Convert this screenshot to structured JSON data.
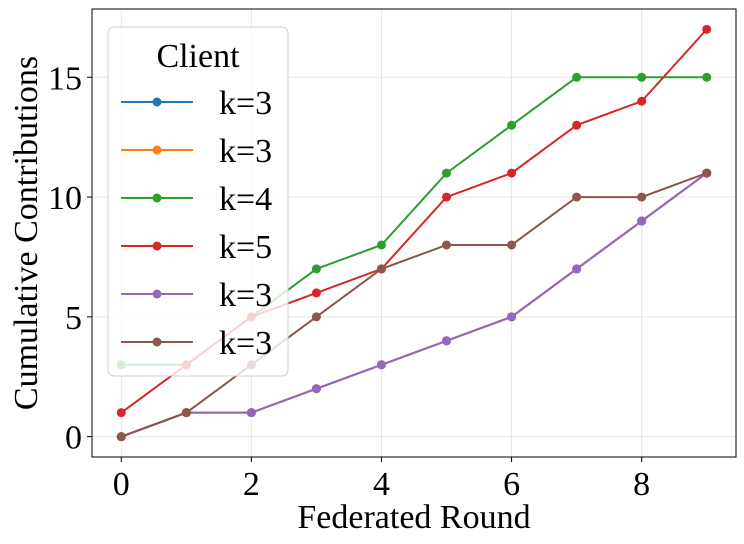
{
  "chart_data": {
    "type": "line",
    "xlabel": "Federated Round",
    "ylabel": "Cumulative Contributions",
    "xlim": [
      -0.45,
      9.45
    ],
    "ylim": [
      -0.85,
      17.85
    ],
    "xticks": [
      0,
      2,
      4,
      6,
      8
    ],
    "yticks": [
      0,
      5,
      10,
      15
    ],
    "grid": true,
    "legend": {
      "title": "Client",
      "placement": "upper-left"
    },
    "x": [
      0,
      1,
      2,
      3,
      4,
      5,
      6,
      7,
      8,
      9
    ],
    "series": [
      {
        "name": "k=3",
        "color": "#1f77b4",
        "values": [
          0,
          1,
          1,
          2,
          3,
          4,
          5,
          7,
          9,
          11
        ]
      },
      {
        "name": "k=3",
        "color": "#ff7f0e",
        "values": [
          0,
          1,
          1,
          2,
          3,
          4,
          5,
          7,
          9,
          11
        ]
      },
      {
        "name": "k=4",
        "color": "#2ca02c",
        "values": [
          3,
          3,
          5,
          7,
          8,
          11,
          13,
          15,
          15,
          15
        ]
      },
      {
        "name": "k=5",
        "color": "#d62728",
        "values": [
          1,
          3,
          5,
          6,
          7,
          10,
          11,
          13,
          14,
          17
        ]
      },
      {
        "name": "k=3",
        "color": "#9467bd",
        "values": [
          0,
          1,
          1,
          2,
          3,
          4,
          5,
          7,
          9,
          11
        ]
      },
      {
        "name": "k=3",
        "color": "#8c564b",
        "values": [
          0,
          1,
          3,
          5,
          7,
          8,
          8,
          10,
          10,
          11
        ]
      }
    ]
  }
}
